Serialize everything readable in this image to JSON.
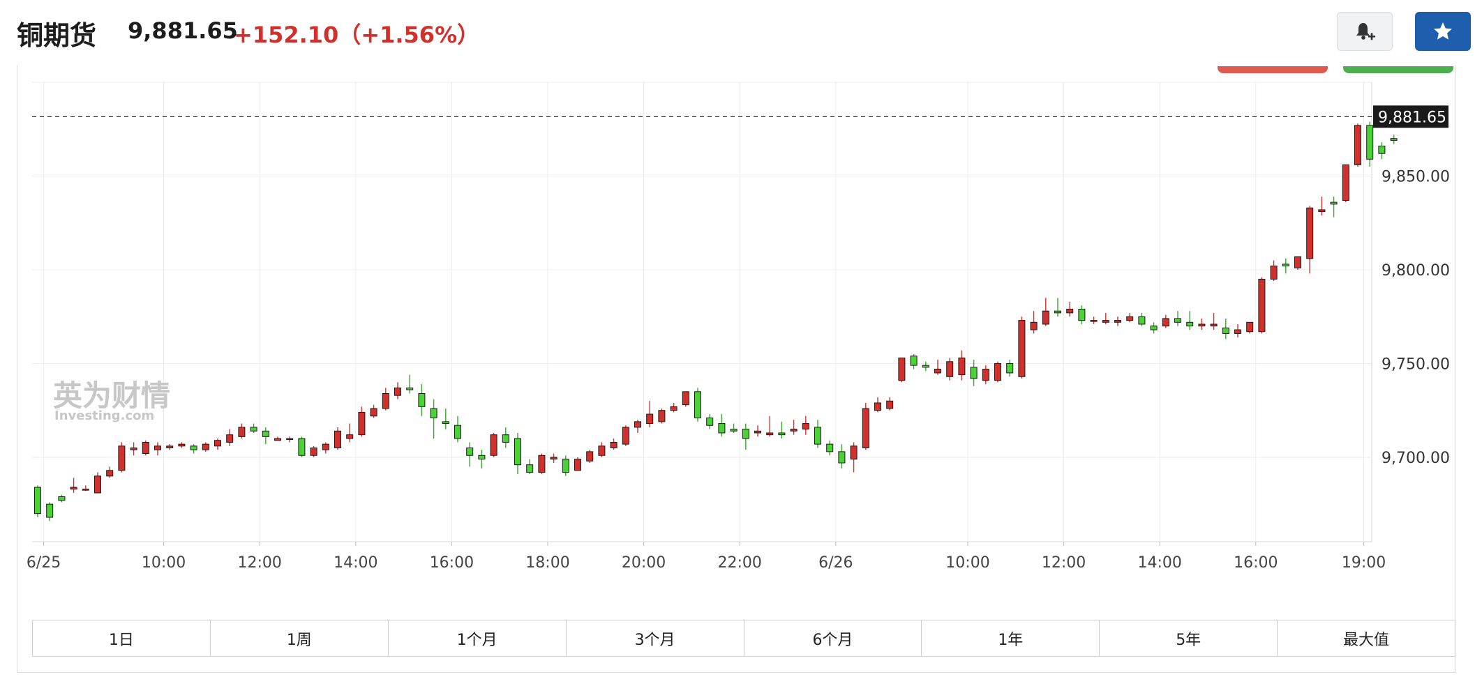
{
  "header": {
    "title": "铜期货",
    "price": "9,881.65",
    "change": "+152.10（+1.56%）"
  },
  "buttons": {
    "alert_icon": "bell-plus-icon",
    "favorite_icon": "star-icon"
  },
  "watermark": {
    "cn": "英为财情",
    "en": "Investing.com"
  },
  "colors": {
    "up": "#d0312d",
    "down": "#4cd137",
    "grid": "#ececec",
    "price_tag_bg": "#1a1a1a",
    "favorite_button": "#1f5eac"
  },
  "chart_data": {
    "type": "candlestick",
    "ylim": [
      9655,
      9900
    ],
    "yticks": [
      9700,
      9750,
      9800,
      9850
    ],
    "ytick_labels": [
      "9,700.00",
      "9,750.00",
      "9,800.00",
      "9,850.00"
    ],
    "xticks": [
      {
        "label": "6/25",
        "slot": 0.5
      },
      {
        "label": "10:00",
        "slot": 10.5
      },
      {
        "label": "12:00",
        "slot": 18.5
      },
      {
        "label": "14:00",
        "slot": 26.5
      },
      {
        "label": "16:00",
        "slot": 34.5
      },
      {
        "label": "18:00",
        "slot": 42.5
      },
      {
        "label": "20:00",
        "slot": 50.5
      },
      {
        "label": "22:00",
        "slot": 58.5
      },
      {
        "label": "6/26",
        "slot": 66.5
      },
      {
        "label": "10:00",
        "slot": 77.5
      },
      {
        "label": "12:00",
        "slot": 85.5
      },
      {
        "label": "14:00",
        "slot": 93.5
      },
      {
        "label": "16:00",
        "slot": 101.5
      },
      {
        "label": "19:00",
        "slot": 110.5
      }
    ],
    "last_price": 9881.65,
    "last_price_label": "9,881.65",
    "candles": [
      [
        9684,
        9685,
        9670,
        9668
      ],
      [
        9675,
        9676,
        9668,
        9666
      ],
      [
        9679,
        9680,
        9677,
        9676
      ],
      [
        9683,
        9689,
        9684,
        9681
      ],
      [
        9683,
        9685,
        9683,
        9682
      ],
      [
        9681,
        9692,
        9690,
        9681
      ],
      [
        9690,
        9695,
        9693,
        9689
      ],
      [
        9693,
        9708,
        9706,
        9692
      ],
      [
        9704,
        9708,
        9705,
        9701
      ],
      [
        9702,
        9709,
        9708,
        9701
      ],
      [
        9704,
        9708,
        9706,
        9701
      ],
      [
        9705,
        9707,
        9706,
        9704
      ],
      [
        9706,
        9708,
        9707,
        9705
      ],
      [
        9706,
        9707,
        9704,
        9702
      ],
      [
        9704,
        9708,
        9707,
        9703
      ],
      [
        9706,
        9710,
        9709,
        9704
      ],
      [
        9708,
        9715,
        9712,
        9706
      ],
      [
        9711,
        9718,
        9716,
        9710
      ],
      [
        9716,
        9718,
        9714,
        9713
      ],
      [
        9714,
        9716,
        9711,
        9707
      ],
      [
        9709,
        9711,
        9710,
        9709
      ],
      [
        9710,
        9711,
        9710,
        9708
      ],
      [
        9710,
        9711,
        9701,
        9700
      ],
      [
        9701,
        9706,
        9705,
        9700
      ],
      [
        9704,
        9708,
        9707,
        9702
      ],
      [
        9705,
        9716,
        9714,
        9704
      ],
      [
        9710,
        9718,
        9712,
        9708
      ],
      [
        9712,
        9727,
        9724,
        9711
      ],
      [
        9722,
        9728,
        9726,
        9721
      ],
      [
        9726,
        9737,
        9734,
        9725
      ],
      [
        9733,
        9740,
        9737,
        9731
      ],
      [
        9737,
        9744,
        9736,
        9734
      ],
      [
        9734,
        9739,
        9727,
        9722
      ],
      [
        9726,
        9731,
        9721,
        9710
      ],
      [
        9719,
        9726,
        9718,
        9715
      ],
      [
        9717,
        9722,
        9710,
        9708
      ],
      [
        9705,
        9708,
        9701,
        9695
      ],
      [
        9701,
        9704,
        9699,
        9694
      ],
      [
        9701,
        9713,
        9712,
        9700
      ],
      [
        9712,
        9716,
        9708,
        9705
      ],
      [
        9710,
        9713,
        9696,
        9691
      ],
      [
        9696,
        9699,
        9692,
        9691
      ],
      [
        9692,
        9702,
        9701,
        9691
      ],
      [
        9699,
        9702,
        9700,
        9697
      ],
      [
        9699,
        9701,
        9692,
        9690
      ],
      [
        9693,
        9700,
        9699,
        9693
      ],
      [
        9698,
        9704,
        9703,
        9697
      ],
      [
        9701,
        9708,
        9706,
        9700
      ],
      [
        9705,
        9710,
        9708,
        9704
      ],
      [
        9707,
        9717,
        9716,
        9706
      ],
      [
        9716,
        9720,
        9719,
        9713
      ],
      [
        9718,
        9730,
        9723,
        9716
      ],
      [
        9719,
        9726,
        9725,
        9718
      ],
      [
        9725,
        9729,
        9727,
        9724
      ],
      [
        9728,
        9735,
        9735,
        9727
      ],
      [
        9735,
        9737,
        9721,
        9719
      ],
      [
        9721,
        9723,
        9717,
        9715
      ],
      [
        9718,
        9723,
        9713,
        9711
      ],
      [
        9715,
        9718,
        9714,
        9713
      ],
      [
        9715,
        9718,
        9710,
        9704
      ],
      [
        9713,
        9717,
        9714,
        9711
      ],
      [
        9712,
        9722,
        9713,
        9711
      ],
      [
        9713,
        9719,
        9712,
        9710
      ],
      [
        9714,
        9720,
        9715,
        9712
      ],
      [
        9715,
        9722,
        9718,
        9712
      ],
      [
        9716,
        9720,
        9707,
        9705
      ],
      [
        9707,
        9709,
        9703,
        9701
      ],
      [
        9703,
        9707,
        9697,
        9694
      ],
      [
        9699,
        9708,
        9706,
        9692
      ],
      [
        9705,
        9729,
        9726,
        9704
      ],
      [
        9725,
        9732,
        9729,
        9724
      ],
      [
        9726,
        9732,
        9730,
        9725
      ],
      [
        9741,
        9752,
        9753,
        9740
      ],
      [
        9754,
        9755,
        9749,
        9747
      ],
      [
        9749,
        9751,
        9748,
        9746
      ],
      [
        9745,
        9752,
        9747,
        9744
      ],
      [
        9743,
        9753,
        9751,
        9741
      ],
      [
        9744,
        9757,
        9753,
        9741
      ],
      [
        9748,
        9752,
        9742,
        9738
      ],
      [
        9741,
        9749,
        9747,
        9739
      ],
      [
        9741,
        9751,
        9750,
        9740
      ],
      [
        9750,
        9752,
        9745,
        9743
      ],
      [
        9743,
        9775,
        9773,
        9742
      ],
      [
        9768,
        9778,
        9772,
        9766
      ],
      [
        9771,
        9785,
        9778,
        9770
      ],
      [
        9778,
        9785,
        9777,
        9775
      ],
      [
        9777,
        9783,
        9779,
        9775
      ],
      [
        9779,
        9781,
        9773,
        9771
      ],
      [
        9773,
        9775,
        9773,
        9771
      ],
      [
        9772,
        9777,
        9773,
        9771
      ],
      [
        9772,
        9775,
        9773,
        9770
      ],
      [
        9773,
        9777,
        9775,
        9772
      ],
      [
        9775,
        9777,
        9771,
        9770
      ],
      [
        9770,
        9772,
        9768,
        9766
      ],
      [
        9770,
        9776,
        9774,
        9769
      ],
      [
        9774,
        9778,
        9772,
        9770
      ],
      [
        9772,
        9778,
        9770,
        9768
      ],
      [
        9770,
        9774,
        9771,
        9768
      ],
      [
        9770,
        9777,
        9771,
        9768
      ],
      [
        9769,
        9774,
        9766,
        9763
      ],
      [
        9766,
        9771,
        9768,
        9764
      ],
      [
        9767,
        9771,
        9772,
        9766
      ],
      [
        9767,
        9796,
        9795,
        9766
      ],
      [
        9795,
        9805,
        9802,
        9794
      ],
      [
        9803,
        9806,
        9802,
        9798
      ],
      [
        9801,
        9807,
        9807,
        9800
      ],
      [
        9806,
        9834,
        9833,
        9798
      ],
      [
        9831,
        9839,
        9832,
        9829
      ],
      [
        9836,
        9839,
        9835,
        9828
      ],
      [
        9837,
        9856,
        9856,
        9836
      ],
      [
        9856,
        9878,
        9877,
        9855
      ],
      [
        9877,
        9879,
        9859,
        9855
      ],
      [
        9866,
        9868,
        9862,
        9859
      ],
      [
        9870,
        9872,
        9869,
        9867
      ]
    ]
  },
  "timeframes": [
    "1日",
    "1周",
    "1个月",
    "3个月",
    "6个月",
    "1年",
    "5年",
    "最大值"
  ]
}
